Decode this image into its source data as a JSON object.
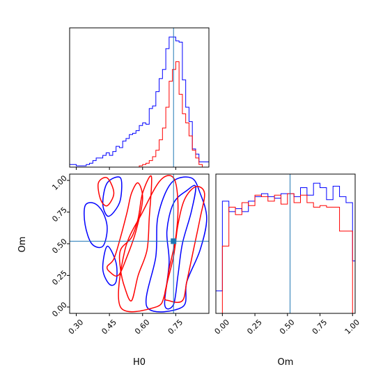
{
  "chart_data": {
    "type": "corner",
    "parameters": [
      "H0",
      "Om"
    ],
    "truths": {
      "H0": 0.74,
      "Om": 0.52
    },
    "colors": {
      "series_a": "#0000ff",
      "series_b": "#ff0000",
      "truth": "#1f77b4"
    },
    "panels": [
      {
        "id": "h0_marginal",
        "type": "histogram",
        "xlim": [
          0.27,
          0.9
        ],
        "bin_edges": [
          0.27,
          0.285,
          0.3,
          0.315,
          0.33,
          0.345,
          0.36,
          0.375,
          0.39,
          0.405,
          0.42,
          0.435,
          0.45,
          0.465,
          0.48,
          0.495,
          0.51,
          0.525,
          0.54,
          0.555,
          0.57,
          0.585,
          0.6,
          0.615,
          0.63,
          0.645,
          0.66,
          0.675,
          0.69,
          0.705,
          0.72,
          0.735,
          0.75,
          0.765,
          0.78,
          0.795,
          0.81,
          0.825,
          0.84,
          0.855,
          0.87,
          0.885,
          0.9
        ],
        "series": [
          {
            "key": "series_a",
            "counts": [
              2,
              2,
              1,
              1,
              1,
              2,
              3,
              5,
              7,
              7,
              9,
              11,
              9,
              12,
              16,
              15,
              20,
              22,
              25,
              26,
              28,
              32,
              34,
              33,
              45,
              47,
              58,
              68,
              75,
              91,
              100,
              100,
              97,
              96,
              67,
              46,
              35,
              14,
              10,
              4,
              4,
              4
            ]
          },
          {
            "key": "series_b",
            "counts": [
              0,
              0,
              0,
              0,
              0,
              0,
              0,
              0,
              0,
              0,
              0,
              0,
              0,
              0,
              0,
              0,
              0,
              0,
              0,
              0,
              0,
              1,
              2,
              3,
              5,
              8,
              13,
              21,
              30,
              46,
              66,
              75,
              81,
              56,
              41,
              34,
              24,
              13,
              7,
              2,
              0,
              0
            ]
          }
        ]
      },
      {
        "id": "om_marginal",
        "type": "histogram",
        "xlim": [
          -0.05,
          1.02
        ],
        "bin_edges": [
          -0.05,
          0.0,
          0.05,
          0.1,
          0.15,
          0.2,
          0.25,
          0.3,
          0.35,
          0.4,
          0.45,
          0.5,
          0.55,
          0.6,
          0.65,
          0.7,
          0.75,
          0.8,
          0.85,
          0.9,
          0.95,
          1.0,
          1.02
        ],
        "series": [
          {
            "key": "series_a",
            "counts": [
              0.15,
              0.75,
              0.68,
              0.7,
              0.68,
              0.75,
              0.78,
              0.8,
              0.78,
              0.77,
              0.8,
              0.8,
              0.78,
              0.84,
              0.79,
              0.87,
              0.84,
              0.76,
              0.85,
              0.78,
              0.74,
              0.35
            ]
          },
          {
            "key": "series_b",
            "counts": [
              0.0,
              0.45,
              0.71,
              0.66,
              0.74,
              0.72,
              0.79,
              0.78,
              0.75,
              0.79,
              0.73,
              0.8,
              0.74,
              0.79,
              0.74,
              0.71,
              0.72,
              0.71,
              0.71,
              0.55,
              0.55,
              0.0
            ]
          }
        ]
      },
      {
        "id": "joint",
        "type": "contour",
        "xlim": [
          0.27,
          0.9
        ],
        "ylim": [
          -0.05,
          1.05
        ],
        "series": [
          {
            "key": "series_a",
            "contours": [
              [
                [
                  0.44,
                  0.98
                ],
                [
                  0.5,
                  1.02
                ],
                [
                  0.5,
                  0.85
                ],
                [
                  0.47,
                  0.75
                ],
                [
                  0.44,
                  0.72
                ],
                [
                  0.42,
                  0.82
                ],
                [
                  0.44,
                  0.98
                ]
              ],
              [
                [
                  0.37,
                  0.5
                ],
                [
                  0.42,
                  0.48
                ],
                [
                  0.44,
                  0.62
                ],
                [
                  0.42,
                  0.75
                ],
                [
                  0.38,
                  0.82
                ],
                [
                  0.34,
                  0.8
                ],
                [
                  0.34,
                  0.65
                ],
                [
                  0.37,
                  0.5
                ]
              ],
              [
                [
                  0.44,
                  0.48
                ],
                [
                  0.42,
                  0.3
                ],
                [
                  0.45,
                  0.18
                ],
                [
                  0.48,
                  0.2
                ],
                [
                  0.48,
                  0.35
                ],
                [
                  0.44,
                  0.48
                ]
              ],
              [
                [
                  0.7,
                  0.02
                ],
                [
                  0.72,
                  0.35
                ],
                [
                  0.71,
                  0.6
                ],
                [
                  0.74,
                  0.82
                ],
                [
                  0.8,
                  0.92
                ],
                [
                  0.84,
                  0.95
                ],
                [
                  0.82,
                  0.75
                ],
                [
                  0.78,
                  0.5
                ],
                [
                  0.76,
                  0.25
                ],
                [
                  0.74,
                  0.02
                ],
                [
                  0.7,
                  0.02
                ]
              ],
              [
                [
                  0.62,
                  0.0
                ],
                [
                  0.66,
                  0.4
                ],
                [
                  0.67,
                  0.72
                ],
                [
                  0.73,
                  0.98
                ],
                [
                  0.82,
                  1.02
                ],
                [
                  0.86,
                  0.9
                ],
                [
                  0.89,
                  0.7
                ],
                [
                  0.86,
                  0.45
                ],
                [
                  0.8,
                  0.2
                ],
                [
                  0.78,
                  0.0
                ],
                [
                  0.62,
                  0.0
                ]
              ]
            ]
          },
          {
            "key": "series_b",
            "contours": [
              [
                [
                  0.4,
                  0.98
                ],
                [
                  0.44,
                  1.02
                ],
                [
                  0.47,
                  0.9
                ],
                [
                  0.44,
                  0.8
                ],
                [
                  0.41,
                  0.85
                ],
                [
                  0.4,
                  0.98
                ]
              ],
              [
                [
                  0.5,
                  0.45
                ],
                [
                  0.55,
                  0.55
                ],
                [
                  0.58,
                  0.7
                ],
                [
                  0.6,
                  0.9
                ],
                [
                  0.64,
                  1.03
                ],
                [
                  0.63,
                  0.7
                ],
                [
                  0.62,
                  0.45
                ],
                [
                  0.58,
                  0.25
                ],
                [
                  0.55,
                  0.05
                ],
                [
                  0.52,
                  0.15
                ],
                [
                  0.5,
                  0.3
                ],
                [
                  0.5,
                  0.45
                ]
              ],
              [
                [
                  0.44,
                  0.32
                ],
                [
                  0.47,
                  0.38
                ],
                [
                  0.5,
                  0.55
                ],
                [
                  0.53,
                  0.75
                ],
                [
                  0.55,
                  0.9
                ],
                [
                  0.58,
                  0.98
                ],
                [
                  0.6,
                  0.85
                ],
                [
                  0.57,
                  0.6
                ],
                [
                  0.53,
                  0.4
                ],
                [
                  0.49,
                  0.25
                ],
                [
                  0.45,
                  0.28
                ],
                [
                  0.44,
                  0.32
                ]
              ],
              [
                [
                  0.7,
                  0.1
                ],
                [
                  0.74,
                  0.4
                ],
                [
                  0.76,
                  0.65
                ],
                [
                  0.79,
                  0.85
                ],
                [
                  0.84,
                  0.95
                ],
                [
                  0.88,
                  0.9
                ],
                [
                  0.86,
                  0.7
                ],
                [
                  0.83,
                  0.45
                ],
                [
                  0.8,
                  0.2
                ],
                [
                  0.78,
                  0.05
                ],
                [
                  0.72,
                  0.05
                ],
                [
                  0.7,
                  0.1
                ]
              ],
              [
                [
                  0.5,
                  0.0
                ],
                [
                  0.52,
                  0.45
                ],
                [
                  0.6,
                  0.75
                ],
                [
                  0.68,
                  1.0
                ],
                [
                  0.74,
                  1.02
                ],
                [
                  0.76,
                  0.82
                ],
                [
                  0.75,
                  0.55
                ],
                [
                  0.72,
                  0.3
                ],
                [
                  0.7,
                  0.1
                ],
                [
                  0.66,
                  0.0
                ],
                [
                  0.5,
                  0.0
                ]
              ]
            ]
          }
        ]
      }
    ],
    "axes": {
      "bottom_left": {
        "xlabel": "H0",
        "ylabel": "Om",
        "xticks": [
          "0.30",
          "0.45",
          "0.60",
          "0.75"
        ],
        "yticks": [
          "0.00",
          "0.25",
          "0.50",
          "0.75",
          "1.00"
        ]
      },
      "bottom_right": {
        "xlabel": "Om",
        "xticks": [
          "0.00",
          "0.25",
          "0.50",
          "0.75",
          "1.00"
        ]
      }
    },
    "grid": false,
    "legend": "none"
  }
}
